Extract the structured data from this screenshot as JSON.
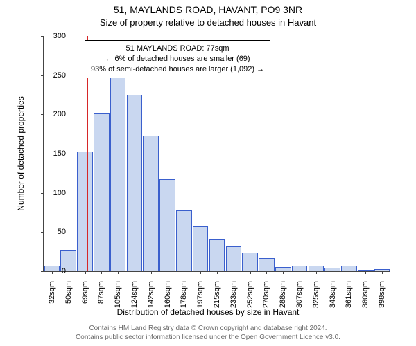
{
  "title": "51, MAYLANDS ROAD, HAVANT, PO9 3NR",
  "subtitle": "Size of property relative to detached houses in Havant",
  "chart": {
    "type": "histogram",
    "background_color": "#ffffff",
    "bar_fill": "#c9d7f0",
    "bar_stroke": "#3a5fcd",
    "marker_color": "#d62728",
    "marker_x_index": 2.15,
    "ylim": [
      0,
      300
    ],
    "ytick_step": 50,
    "bar_width": 0.95,
    "categories": [
      "32sqm",
      "50sqm",
      "69sqm",
      "87sqm",
      "105sqm",
      "124sqm",
      "142sqm",
      "160sqm",
      "178sqm",
      "197sqm",
      "215sqm",
      "233sqm",
      "252sqm",
      "270sqm",
      "288sqm",
      "307sqm",
      "325sqm",
      "343sqm",
      "361sqm",
      "380sqm",
      "398sqm"
    ],
    "values": [
      7,
      27,
      153,
      201,
      248,
      225,
      173,
      117,
      78,
      57,
      41,
      32,
      24,
      17,
      5,
      7,
      7,
      4,
      7,
      2,
      3
    ],
    "y_axis_label": "Number of detached properties",
    "x_axis_label": "Distribution of detached houses by size in Havant",
    "label_fontsize": 12,
    "tick_fontsize": 11
  },
  "callout": {
    "line1": "51 MAYLANDS ROAD: 77sqm",
    "line2": "← 6% of detached houses are smaller (69)",
    "line3": "93% of semi-detached houses are larger (1,092) →"
  },
  "footer": {
    "line1": "Contains HM Land Registry data © Crown copyright and database right 2024.",
    "line2": "Contains public sector information licensed under the Open Government Licence v3.0."
  }
}
